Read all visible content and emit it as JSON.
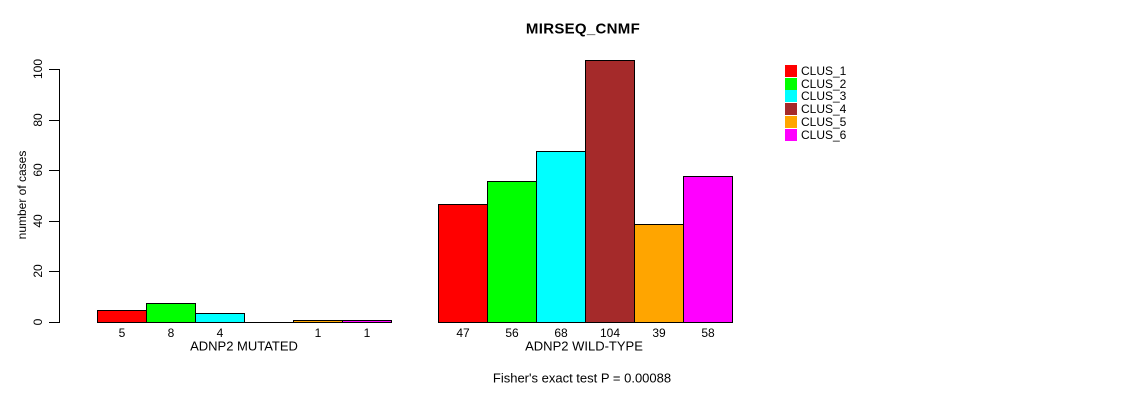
{
  "chart_data": {
    "type": "bar",
    "title": "MIRSEQ_CNMF",
    "ylabel": "number of cases",
    "xlabel": "",
    "ylim": [
      0,
      100
    ],
    "yticks": [
      0,
      20,
      40,
      60,
      80,
      100
    ],
    "categories": [
      "ADNP2 MUTATED",
      "ADNP2 WILD-TYPE"
    ],
    "series": [
      {
        "name": "CLUS_1",
        "color": "#FF0000",
        "values": [
          5,
          47
        ]
      },
      {
        "name": "CLUS_2",
        "color": "#00FF00",
        "values": [
          8,
          56
        ]
      },
      {
        "name": "CLUS_3",
        "color": "#00FFFF",
        "values": [
          4,
          68
        ]
      },
      {
        "name": "CLUS_4",
        "color": "#A52A2A",
        "values": [
          0,
          104
        ]
      },
      {
        "name": "CLUS_5",
        "color": "#FFA500",
        "values": [
          1,
          39
        ]
      },
      {
        "name": "CLUS_6",
        "color": "#FF00FF",
        "values": [
          1,
          58
        ]
      }
    ],
    "bar_value_labels": {
      "shown": true,
      "hidden_for_zero": true
    },
    "legend_position": "right",
    "legend_frame": false,
    "grid": false,
    "annotation": "Fisher's exact test P = 0.00088",
    "background_color": "#FFFFFF",
    "axis_color": "#000000",
    "text_color": "#000000"
  }
}
